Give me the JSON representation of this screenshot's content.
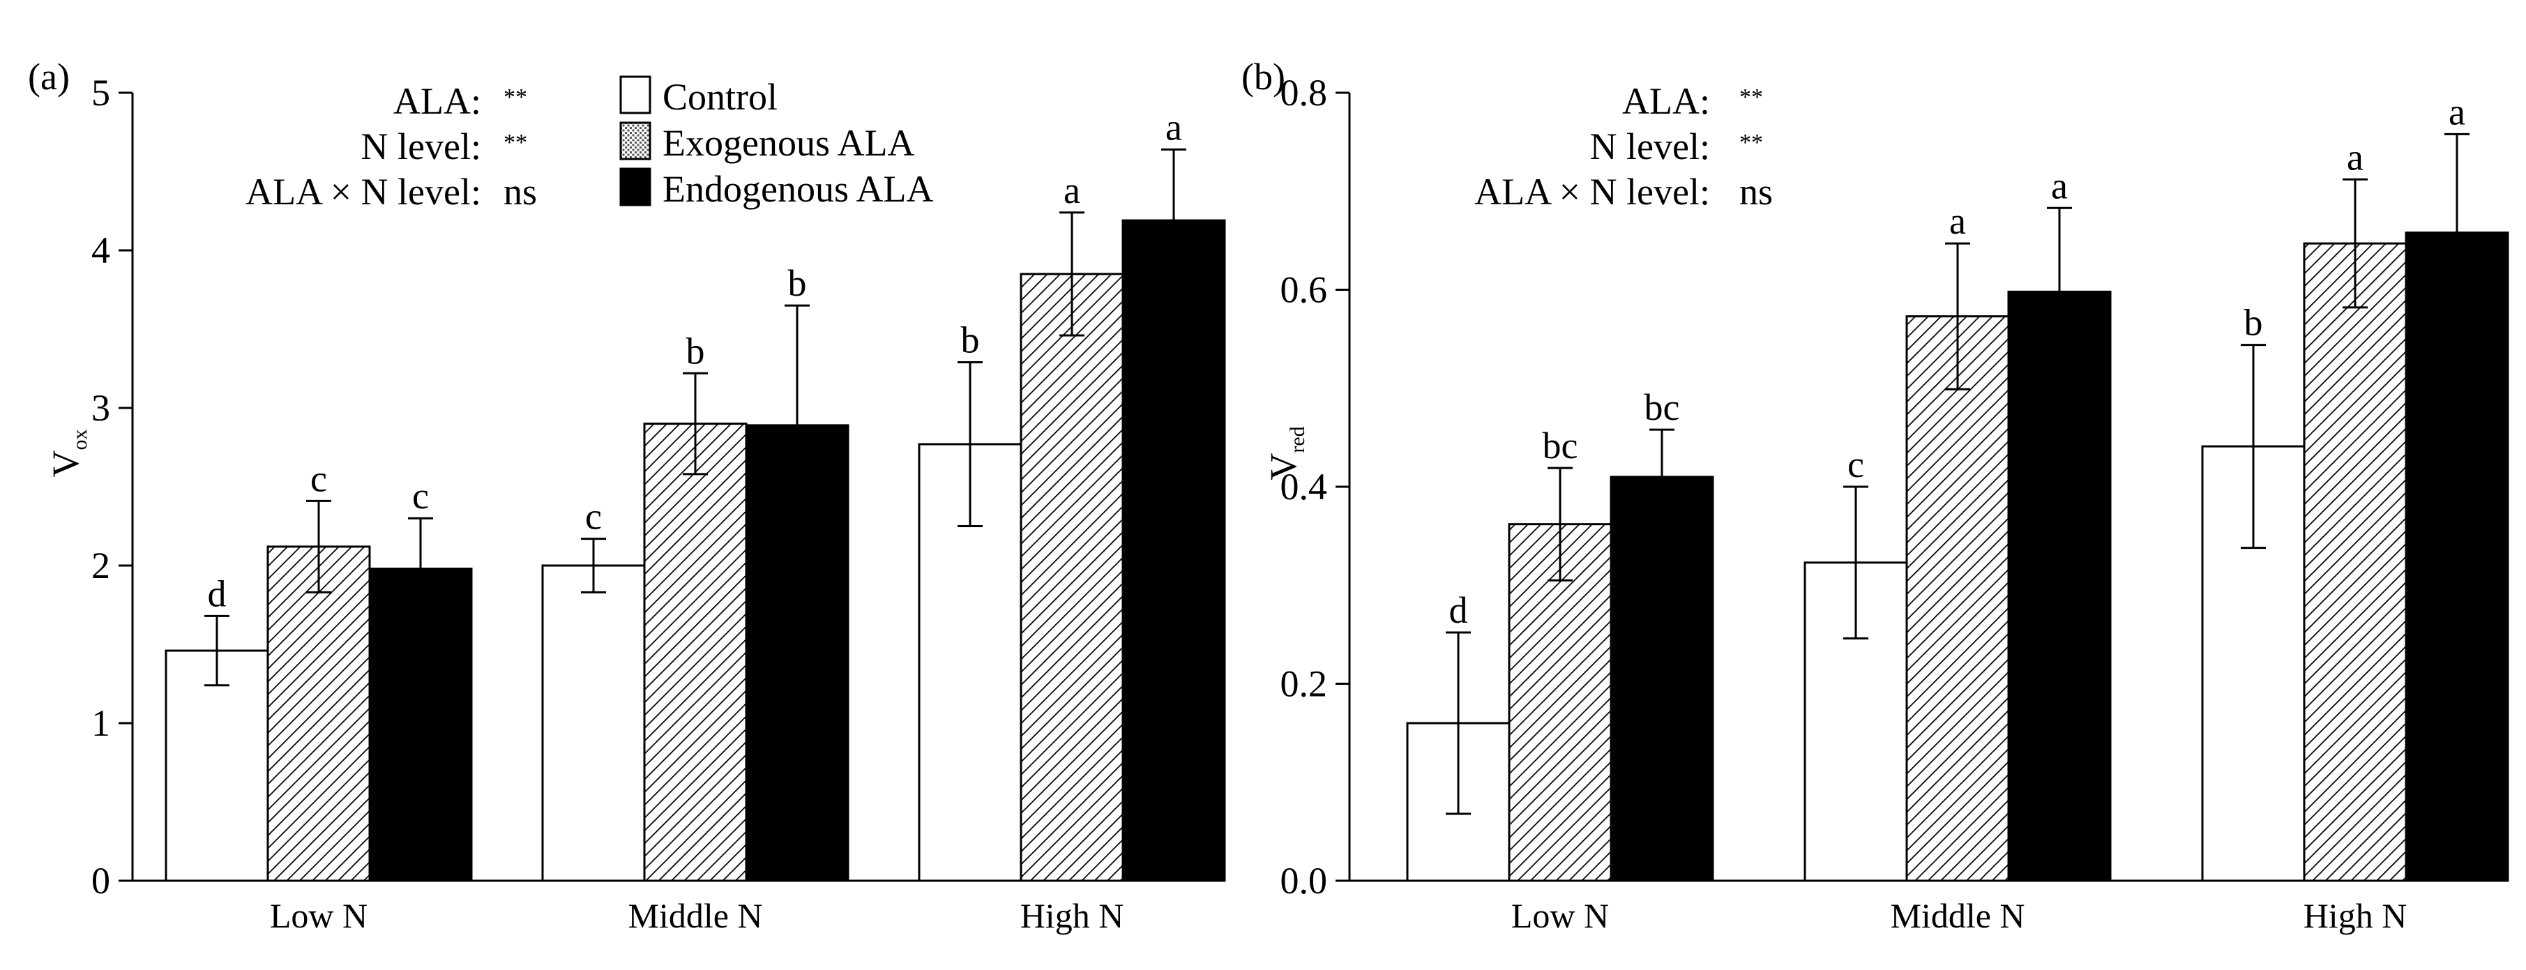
{
  "legend": {
    "entries": [
      {
        "name": "Control",
        "fill": "white"
      },
      {
        "name": "Exogenous ALA",
        "fill": "dots"
      },
      {
        "name": "Endogenous ALA",
        "fill": "black"
      }
    ]
  },
  "colors": {
    "bar_black": "#000000",
    "bar_white": "#ffffff",
    "axis": "#000000"
  },
  "chart_data": [
    {
      "type": "bar",
      "panel_label": "(a)",
      "ylabel": "V",
      "ylabel_sub": "ox",
      "categories": [
        "Low N",
        "Middle N",
        "High N"
      ],
      "ylim": [
        0,
        5
      ],
      "yticks": [
        "0",
        "1",
        "2",
        "3",
        "4",
        "5"
      ],
      "ytick_values": [
        0,
        1,
        2,
        3,
        4,
        5
      ],
      "stats": [
        {
          "label": "ALA:",
          "value": "**"
        },
        {
          "label": "N level:",
          "value": "**"
        },
        {
          "label": "ALA × N level:",
          "value": "ns"
        }
      ],
      "series": [
        {
          "name": "Control",
          "fill": "white",
          "values": [
            1.46,
            2.0,
            2.77
          ],
          "errors": [
            0.22,
            0.17,
            0.52
          ],
          "letters": [
            "d",
            "c",
            "b"
          ]
        },
        {
          "name": "Exogenous ALA",
          "fill": "hatch",
          "values": [
            2.12,
            2.9,
            3.85
          ],
          "errors": [
            0.29,
            0.32,
            0.39
          ],
          "letters": [
            "c",
            "b",
            "a"
          ]
        },
        {
          "name": "Endogenous ALA",
          "fill": "black",
          "values": [
            1.98,
            2.89,
            4.19
          ],
          "errors": [
            0.32,
            0.76,
            0.45
          ],
          "letters": [
            "c",
            "b",
            "a"
          ]
        }
      ]
    },
    {
      "type": "bar",
      "panel_label": "(b)",
      "ylabel": "V",
      "ylabel_sub": "red",
      "categories": [
        "Low N",
        "Middle N",
        "High N"
      ],
      "ylim": [
        0,
        0.8
      ],
      "yticks": [
        "0.0",
        "0.2",
        "0.4",
        "0.6",
        "0.8"
      ],
      "ytick_values": [
        0,
        0.2,
        0.4,
        0.6,
        0.8
      ],
      "stats": [
        {
          "label": "ALA:",
          "value": "**"
        },
        {
          "label": "N level:",
          "value": "**"
        },
        {
          "label": "ALA × N level:",
          "value": "ns"
        }
      ],
      "series": [
        {
          "name": "Control",
          "fill": "white",
          "values": [
            0.16,
            0.323,
            0.441
          ],
          "errors": [
            0.092,
            0.077,
            0.103
          ],
          "letters": [
            "d",
            "c",
            "b"
          ]
        },
        {
          "name": "Exogenous ALA",
          "fill": "hatch",
          "values": [
            0.362,
            0.573,
            0.647
          ],
          "errors": [
            0.057,
            0.074,
            0.065
          ],
          "letters": [
            "bc",
            "a",
            "a"
          ]
        },
        {
          "name": "Endogenous ALA",
          "fill": "black",
          "values": [
            0.41,
            0.598,
            0.658
          ],
          "errors": [
            0.048,
            0.085,
            0.1
          ],
          "letters": [
            "bc",
            "a",
            "a"
          ]
        }
      ]
    }
  ]
}
